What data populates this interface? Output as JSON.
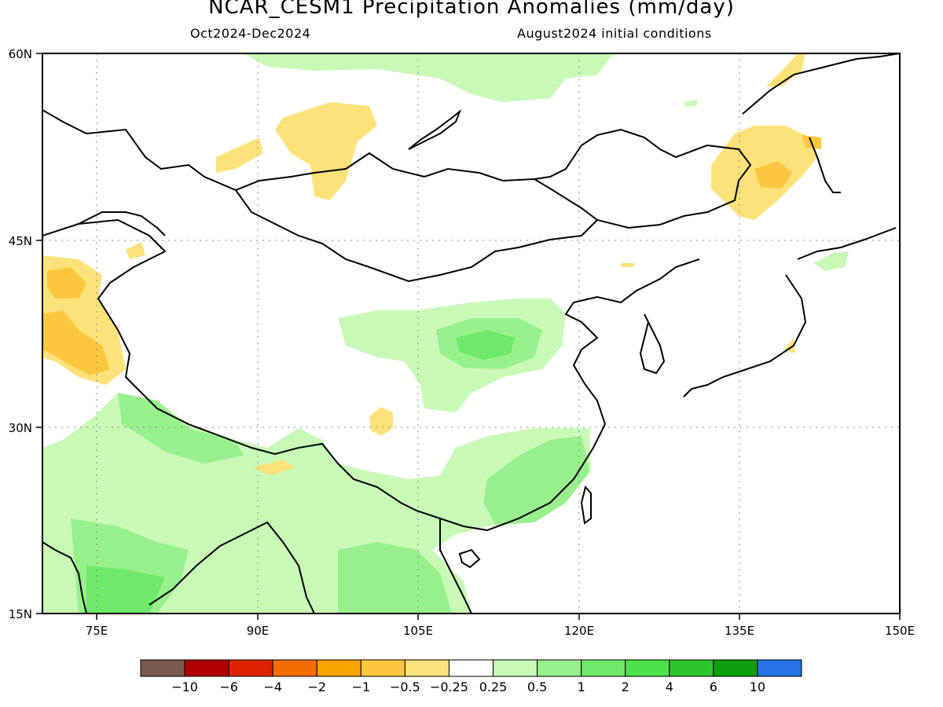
{
  "header": {
    "title": "NCAR_CESM1 Precipitation Anomalies (mm/day)",
    "period": "Oct2024-Dec2024",
    "init": "August2024 initial conditions"
  },
  "axes": {
    "lat_labels": [
      "60N",
      "45N",
      "30N",
      "15N"
    ],
    "lon_labels": [
      "75E",
      "90E",
      "105E",
      "120E",
      "135E",
      "150E"
    ],
    "lon_ticks": [
      75,
      90,
      105,
      120,
      135,
      150
    ],
    "lat_ticks": [
      60,
      45,
      30,
      15
    ],
    "lon_range": [
      70,
      150
    ],
    "lat_range": [
      15,
      60
    ]
  },
  "colorbar": {
    "colors": [
      "#7a5a4e",
      "#b00000",
      "#dd2200",
      "#f46c00",
      "#f9a200",
      "#fcc63e",
      "#fde27a",
      "#ffffff",
      "#c8f9b7",
      "#98f08c",
      "#6ee96a",
      "#4de24d",
      "#2fc42f",
      "#0e9e0e",
      "#2672e8"
    ],
    "labels": [
      "-10",
      "-6",
      "-4",
      "-2",
      "-1",
      "-0.5",
      "-0.25",
      "0.25",
      "0.5",
      "1",
      "2",
      "4",
      "6",
      "10"
    ]
  },
  "map": {
    "grid": true,
    "colors": {
      "neg1": "#fde27a",
      "neg2": "#fcc63e",
      "pos1": "#c8f9b7",
      "pos2": "#98f08c",
      "pos3": "#6ee96a"
    }
  }
}
